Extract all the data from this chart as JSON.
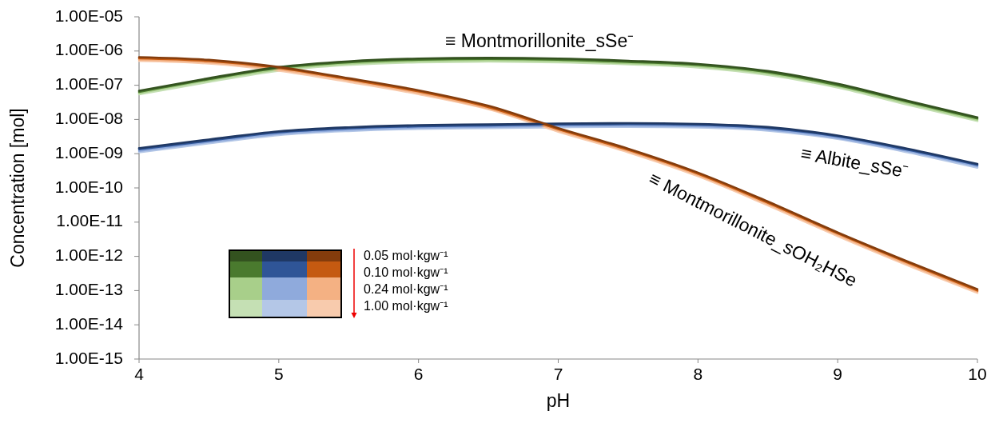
{
  "chart_data": {
    "type": "line",
    "xlabel": "pH",
    "ylabel": "Concentration [mol]",
    "log": "y",
    "grid": false,
    "marker": "none",
    "line_style": "solid",
    "x": [
      4,
      4.5,
      5,
      5.5,
      6,
      6.5,
      7,
      7.5,
      8,
      8.5,
      9,
      9.5,
      10
    ],
    "xlim": [
      4,
      10
    ],
    "xticks": [
      4,
      5,
      6,
      7,
      8,
      9,
      10
    ],
    "ylim": [
      1e-15,
      1e-05
    ],
    "yticks": [
      {
        "value": 1e-15,
        "label": "1.00E-15"
      },
      {
        "value": 1e-14,
        "label": "1.00E-14"
      },
      {
        "value": 1e-13,
        "label": "1.00E-13"
      },
      {
        "value": 1e-12,
        "label": "1.00E-12"
      },
      {
        "value": 1e-11,
        "label": "1.00E-11"
      },
      {
        "value": 1e-10,
        "label": "1.00E-10"
      },
      {
        "value": 1e-09,
        "label": "1.00E-09"
      },
      {
        "value": 1e-08,
        "label": "1.00E-08"
      },
      {
        "value": 1e-07,
        "label": "1.00E-07"
      },
      {
        "value": 1e-06,
        "label": "1.00E-06"
      },
      {
        "value": 1e-05,
        "label": "1.00E-05"
      }
    ],
    "series": [
      {
        "color": "#33521f",
        "values": [
          6.9e-08,
          1.6e-07,
          3.4e-07,
          5e-07,
          6e-07,
          6.3e-07,
          6e-07,
          5.2e-07,
          4.2e-07,
          2.6e-07,
          1.1e-07,
          3.5e-08,
          1.15e-08
        ]
      },
      {
        "color": "#4a7a2e",
        "values": [
          6.4e-08,
          1.5e-07,
          3.2e-07,
          4.7e-07,
          5.6e-07,
          5.9e-07,
          5.6e-07,
          4.8e-07,
          3.9e-07,
          2.4e-07,
          1e-07,
          3.3e-08,
          1.07e-08
        ]
      },
      {
        "color": "#a8cf8a",
        "values": [
          5.9e-08,
          1.4e-07,
          2.9e-07,
          4.3e-07,
          5.1e-07,
          5.4e-07,
          5.1e-07,
          4.4e-07,
          3.6e-07,
          2.2e-07,
          9.4e-08,
          3e-08,
          9.8e-09
        ]
      },
      {
        "color": "#c5e0b4",
        "values": [
          5.4e-08,
          1.25e-07,
          2.65e-07,
          3.9e-07,
          4.7e-07,
          4.9e-07,
          4.7e-07,
          4.1e-07,
          3.3e-07,
          2e-07,
          8.6e-08,
          2.7e-08,
          9e-09
        ]
      },
      {
        "color": "#1f3864",
        "values": [
          1.45e-09,
          2.6e-09,
          4.5e-09,
          5.9e-09,
          6.8e-09,
          7.2e-09,
          7.6e-09,
          7.8e-09,
          7.4e-09,
          6e-09,
          3.4e-09,
          1.4e-09,
          5e-10
        ]
      },
      {
        "color": "#2f5597",
        "values": [
          1.35e-09,
          2.4e-09,
          4.2e-09,
          5.5e-09,
          6.3e-09,
          6.7e-09,
          7.1e-09,
          7.3e-09,
          6.9e-09,
          5.6e-09,
          3.2e-09,
          1.3e-09,
          4.7e-10
        ]
      },
      {
        "color": "#8faadc",
        "values": [
          1.2e-09,
          2.2e-09,
          3.8e-09,
          5e-09,
          5.8e-09,
          6.1e-09,
          6.5e-09,
          6.6e-09,
          6.3e-09,
          5.1e-09,
          2.9e-09,
          1.2e-09,
          4.3e-10
        ]
      },
      {
        "color": "#b4c7e7",
        "values": [
          1.1e-09,
          2e-09,
          3.5e-09,
          4.6e-09,
          5.3e-09,
          5.6e-09,
          5.9e-09,
          6.1e-09,
          5.8e-09,
          4.7e-09,
          2.7e-09,
          1.1e-09,
          3.9e-10
        ]
      },
      {
        "color": "#843c0c",
        "values": [
          6.6e-07,
          5.5e-07,
          3.4e-07,
          1.6e-07,
          7.1e-08,
          2.5e-08,
          5.6e-09,
          1.4e-09,
          2.8e-10,
          4e-11,
          5e-12,
          7.1e-13,
          1.1e-13
        ]
      },
      {
        "color": "#c55a11",
        "values": [
          6.1e-07,
          5.1e-07,
          3.2e-07,
          1.5e-07,
          6.6e-08,
          2.3e-08,
          5.2e-09,
          1.3e-09,
          2.6e-10,
          3.7e-11,
          4.7e-12,
          6.6e-13,
          1e-13
        ]
      },
      {
        "color": "#f4b183",
        "values": [
          5.6e-07,
          4.7e-07,
          2.9e-07,
          1.4e-07,
          6e-08,
          2.1e-08,
          4.8e-09,
          1.2e-09,
          2.4e-10,
          3.4e-11,
          4.3e-12,
          6e-13,
          9.4e-14
        ]
      },
      {
        "color": "#f8cbad",
        "values": [
          5.1e-07,
          4.3e-07,
          2.65e-07,
          1.25e-07,
          5.5e-08,
          2e-08,
          4.4e-09,
          1.1e-09,
          2.2e-10,
          3.1e-11,
          3.9e-12,
          5.5e-13,
          8.6e-14
        ]
      }
    ],
    "annotations": [
      "≡ Montmorillonite_sSe⁻",
      "≡ Albite_sSe⁻",
      "≡ Montmorillonite_sOH₂HSe",
      "0.05 mol·kgw⁻¹",
      "0.10 mol·kgw⁻¹",
      "0.24 mol·kgw⁻¹",
      "1.00 mol·kgw⁻¹"
    ]
  }
}
